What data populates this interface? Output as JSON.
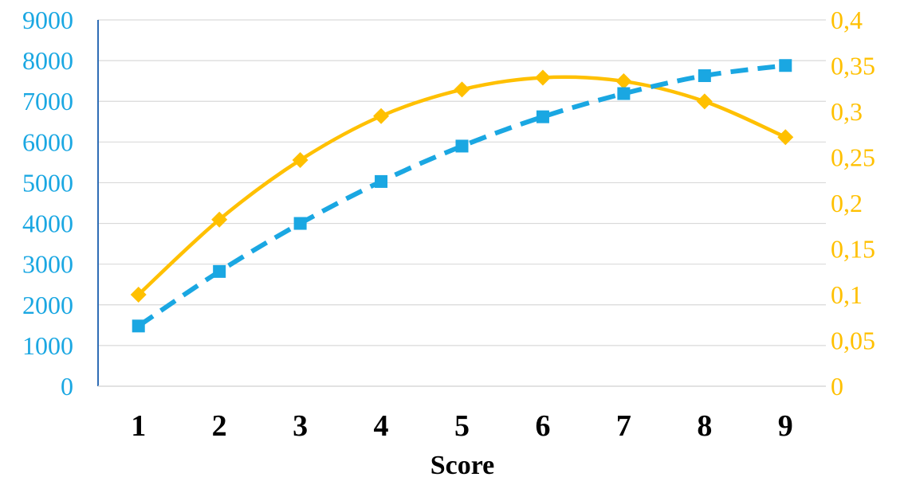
{
  "chart_data": {
    "type": "line",
    "title": "",
    "xlabel": "Score",
    "ylabel": "",
    "y2label": "",
    "categories": [
      "1",
      "2",
      "3",
      "4",
      "5",
      "6",
      "7",
      "8",
      "9"
    ],
    "ylim": [
      0,
      9000
    ],
    "y2lim": [
      0,
      0.4
    ],
    "yticks": [
      "0",
      "1000",
      "2000",
      "3000",
      "4000",
      "5000",
      "6000",
      "7000",
      "8000",
      "9000"
    ],
    "y2ticks": [
      "0",
      "0,05",
      "0,1",
      "0,15",
      "0,2",
      "0,25",
      "0,3",
      "0,35",
      "0,4"
    ],
    "grid": true,
    "legend": "none",
    "series": [
      {
        "axis": "left",
        "color": "#1AA7E2",
        "style": "dashed",
        "marker": "square",
        "values": [
          1480,
          2820,
          4000,
          5030,
          5900,
          6620,
          7190,
          7630,
          7880
        ]
      },
      {
        "axis": "right",
        "color": "#FFC000",
        "style": "solid",
        "marker": "diamond",
        "values": [
          0.1,
          0.182,
          0.247,
          0.295,
          0.324,
          0.337,
          0.333,
          0.311,
          0.272
        ]
      }
    ],
    "colors": {
      "left_axis": "#1AA7E2",
      "right_axis": "#FFC000",
      "grid": "#D9D9D9",
      "axis_line": "#2F6DB5"
    }
  }
}
